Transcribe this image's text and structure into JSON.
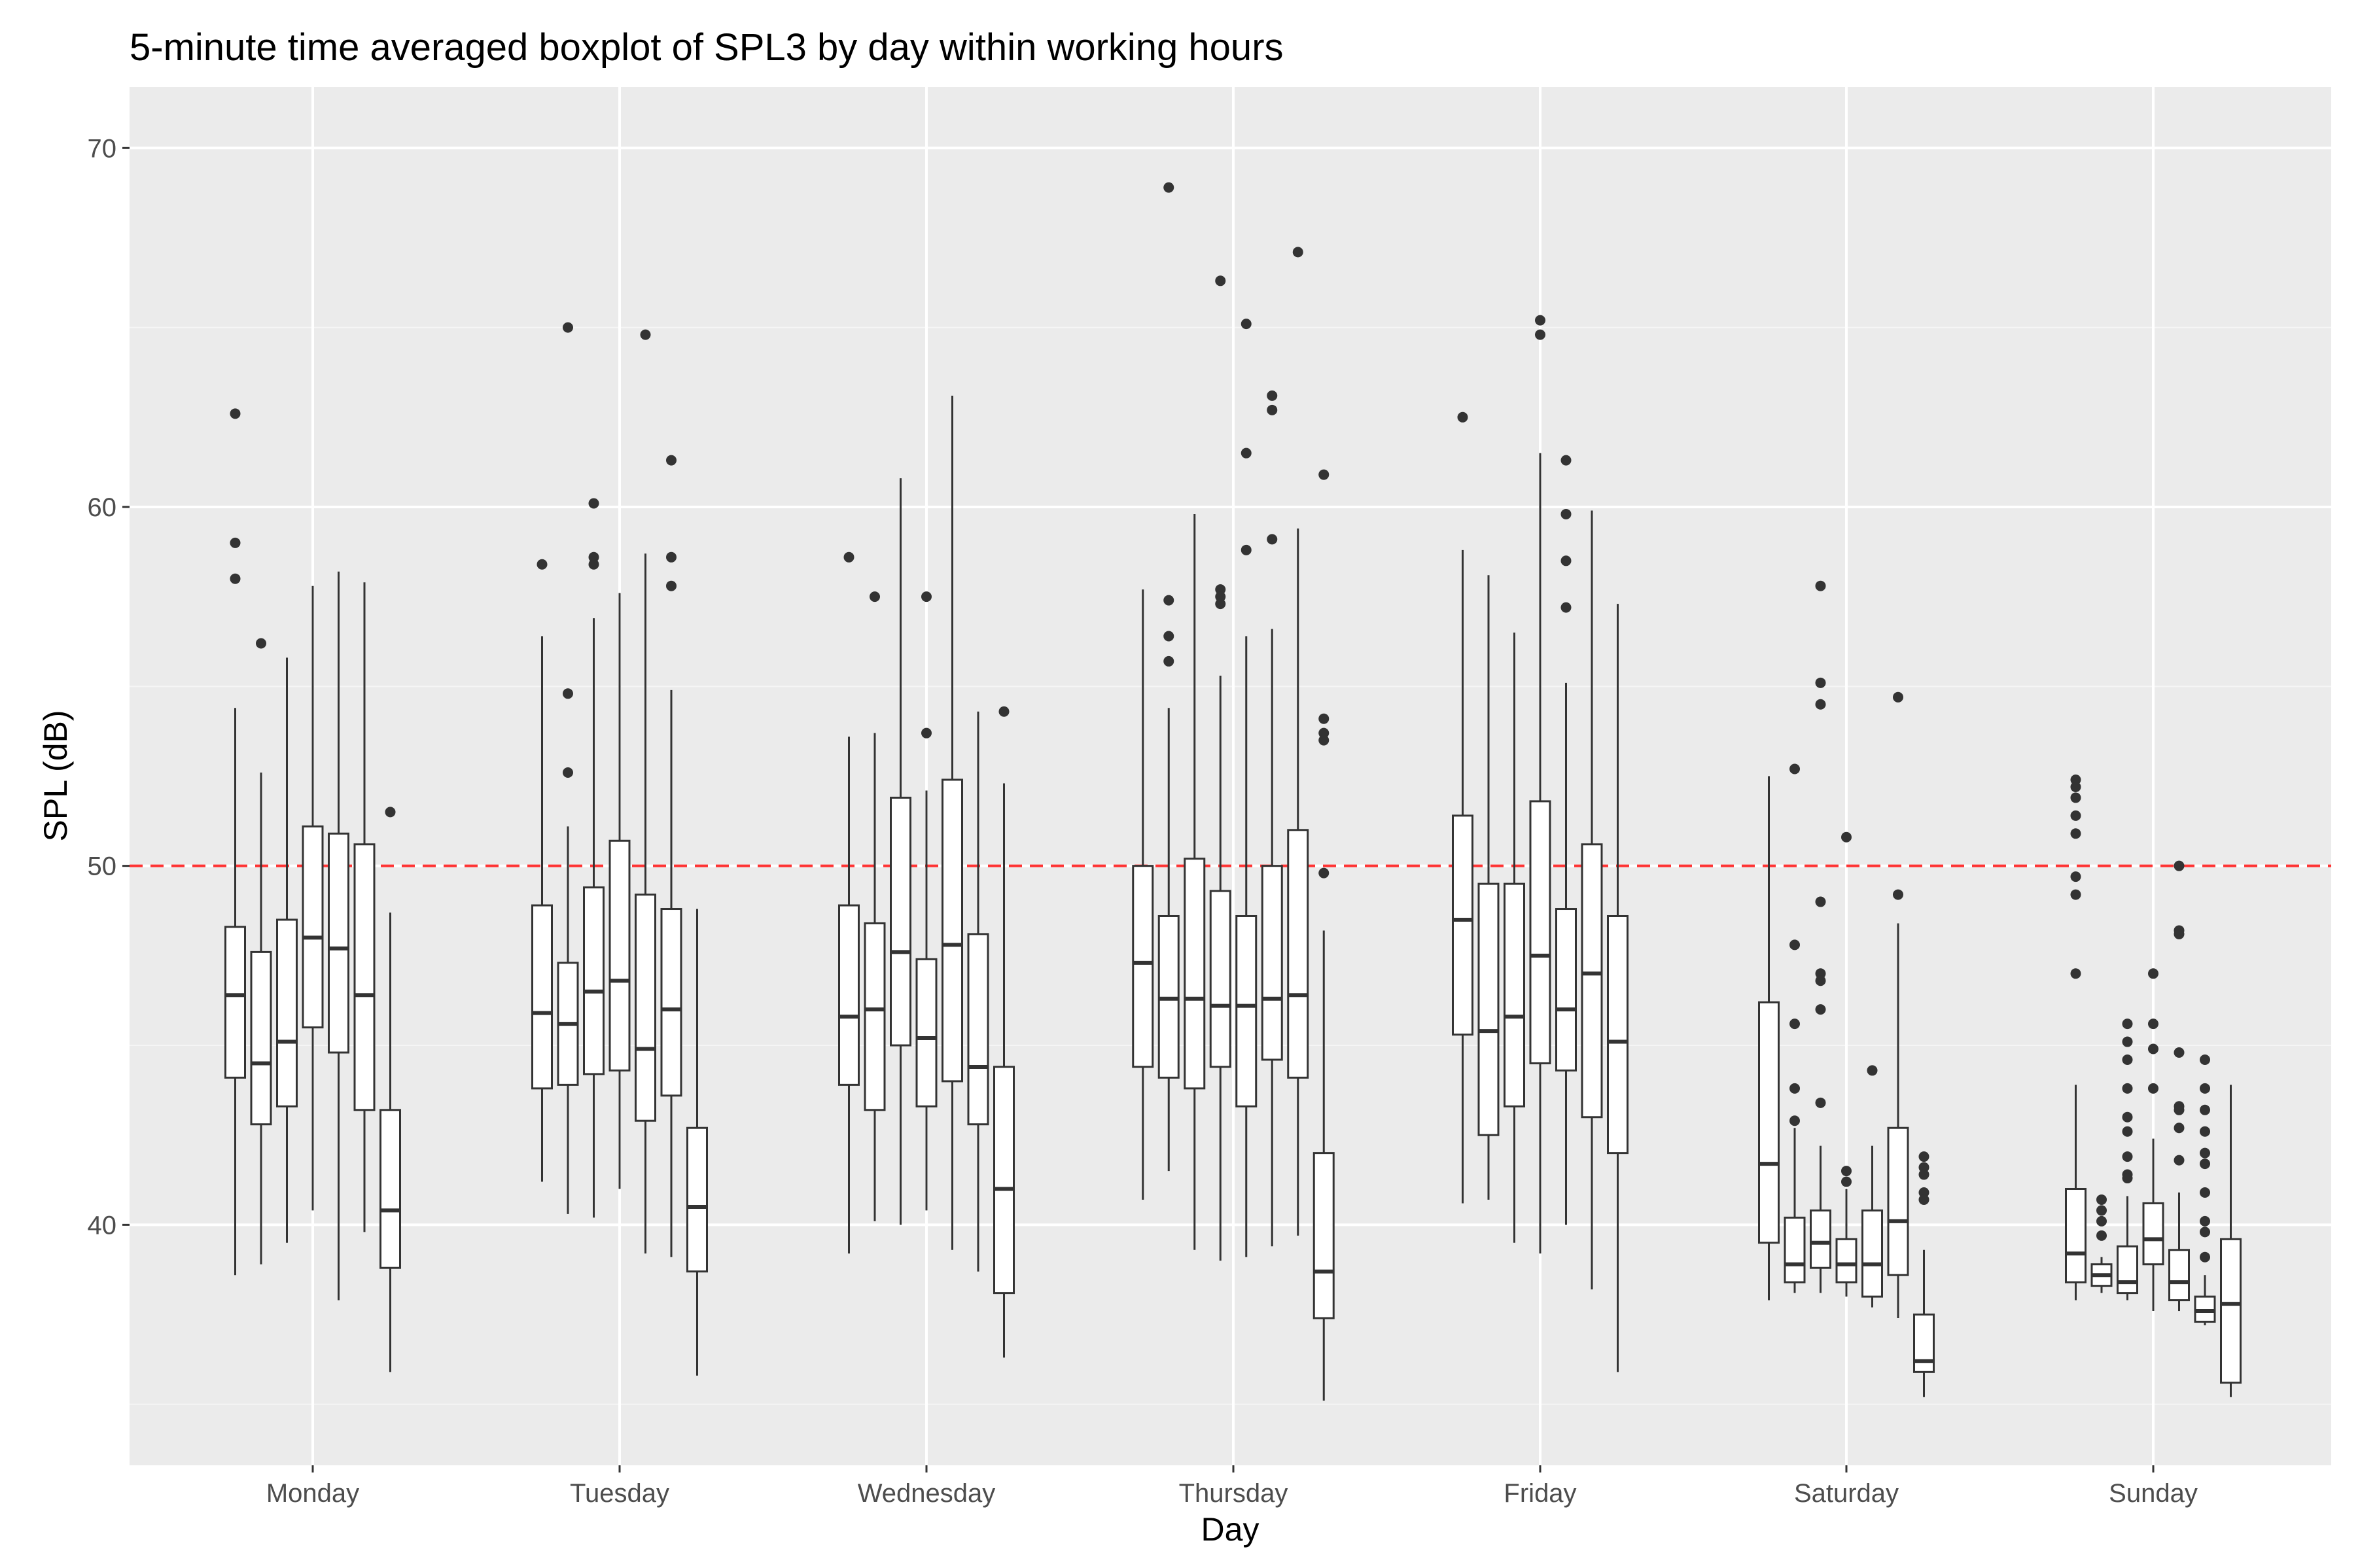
{
  "chart_data": {
    "type": "boxplot",
    "title": "5-minute time averaged boxplot of SPL3 by day within working hours",
    "xlabel": "Day",
    "ylabel": "SPL (dB)",
    "ylim": [
      33.3,
      71.7
    ],
    "yticks": [
      40,
      50,
      60,
      70
    ],
    "grid": true,
    "reference_line": {
      "y": 50,
      "color": "#ff3333",
      "style": "dashed"
    },
    "categories": [
      "Monday",
      "Tuesday",
      "Wednesday",
      "Thursday",
      "Friday",
      "Saturday",
      "Sunday"
    ],
    "colors": {
      "panel": "#ebebeb",
      "grid_major": "#ffffff",
      "grid_minor": "#f5f5f5",
      "box_fill": "#ffffff",
      "box_line": "#333333",
      "outlier": "#333333",
      "tick_text": "#4d4d4d"
    },
    "groups": [
      {
        "day": "Monday",
        "boxes": [
          {
            "whisker_low": 38.6,
            "q1": 44.1,
            "median": 46.4,
            "q3": 48.3,
            "whisker_high": 54.4,
            "outliers": [
              62.6,
              59.0,
              58.0
            ]
          },
          {
            "whisker_low": 38.9,
            "q1": 42.8,
            "median": 44.5,
            "q3": 47.6,
            "whisker_high": 52.6,
            "outliers": [
              56.2
            ]
          },
          {
            "whisker_low": 39.5,
            "q1": 43.3,
            "median": 45.1,
            "q3": 48.5,
            "whisker_high": 55.8,
            "outliers": []
          },
          {
            "whisker_low": 40.4,
            "q1": 45.5,
            "median": 48.0,
            "q3": 51.1,
            "whisker_high": 57.8,
            "outliers": []
          },
          {
            "whisker_low": 37.9,
            "q1": 44.8,
            "median": 47.7,
            "q3": 50.9,
            "whisker_high": 58.2,
            "outliers": []
          },
          {
            "whisker_low": 39.8,
            "q1": 43.2,
            "median": 46.4,
            "q3": 50.6,
            "whisker_high": 57.9,
            "outliers": []
          },
          {
            "whisker_low": 35.9,
            "q1": 38.8,
            "median": 40.4,
            "q3": 43.2,
            "whisker_high": 48.7,
            "outliers": [
              51.5
            ]
          }
        ]
      },
      {
        "day": "Tuesday",
        "boxes": [
          {
            "whisker_low": 41.2,
            "q1": 43.8,
            "median": 45.9,
            "q3": 48.9,
            "whisker_high": 56.4,
            "outliers": [
              58.4
            ]
          },
          {
            "whisker_low": 40.3,
            "q1": 43.9,
            "median": 45.6,
            "q3": 47.3,
            "whisker_high": 51.1,
            "outliers": [
              65.0,
              54.8,
              52.6
            ]
          },
          {
            "whisker_low": 40.2,
            "q1": 44.2,
            "median": 46.5,
            "q3": 49.4,
            "whisker_high": 56.9,
            "outliers": [
              60.1,
              58.6,
              58.4
            ]
          },
          {
            "whisker_low": 41.0,
            "q1": 44.3,
            "median": 46.8,
            "q3": 50.7,
            "whisker_high": 57.6,
            "outliers": []
          },
          {
            "whisker_low": 39.2,
            "q1": 42.9,
            "median": 44.9,
            "q3": 49.2,
            "whisker_high": 58.7,
            "outliers": [
              64.8
            ]
          },
          {
            "whisker_low": 39.1,
            "q1": 43.6,
            "median": 46.0,
            "q3": 48.8,
            "whisker_high": 54.9,
            "outliers": [
              61.3,
              58.6,
              57.8
            ]
          },
          {
            "whisker_low": 35.8,
            "q1": 38.7,
            "median": 40.5,
            "q3": 42.7,
            "whisker_high": 48.8,
            "outliers": []
          }
        ]
      },
      {
        "day": "Wednesday",
        "boxes": [
          {
            "whisker_low": 39.2,
            "q1": 43.9,
            "median": 45.8,
            "q3": 48.9,
            "whisker_high": 53.6,
            "outliers": [
              58.6
            ]
          },
          {
            "whisker_low": 40.1,
            "q1": 43.2,
            "median": 46.0,
            "q3": 48.4,
            "whisker_high": 53.7,
            "outliers": [
              57.5
            ]
          },
          {
            "whisker_low": 40.0,
            "q1": 45.0,
            "median": 47.6,
            "q3": 51.9,
            "whisker_high": 60.8,
            "outliers": []
          },
          {
            "whisker_low": 40.4,
            "q1": 43.3,
            "median": 45.2,
            "q3": 47.4,
            "whisker_high": 52.1,
            "outliers": [
              57.5,
              53.7
            ]
          },
          {
            "whisker_low": 39.3,
            "q1": 44.0,
            "median": 47.8,
            "q3": 52.4,
            "whisker_high": 63.1,
            "outliers": []
          },
          {
            "whisker_low": 38.7,
            "q1": 42.8,
            "median": 44.4,
            "q3": 48.1,
            "whisker_high": 54.3,
            "outliers": []
          },
          {
            "whisker_low": 36.3,
            "q1": 38.1,
            "median": 41.0,
            "q3": 44.4,
            "whisker_high": 52.3,
            "outliers": [
              54.3
            ]
          }
        ]
      },
      {
        "day": "Thursday",
        "boxes": [
          {
            "whisker_low": 40.7,
            "q1": 44.4,
            "median": 47.3,
            "q3": 50.0,
            "whisker_high": 57.7,
            "outliers": []
          },
          {
            "whisker_low": 41.5,
            "q1": 44.1,
            "median": 46.3,
            "q3": 48.6,
            "whisker_high": 54.4,
            "outliers": [
              68.9,
              57.4,
              56.4,
              55.7
            ]
          },
          {
            "whisker_low": 39.3,
            "q1": 43.8,
            "median": 46.3,
            "q3": 50.2,
            "whisker_high": 59.8,
            "outliers": []
          },
          {
            "whisker_low": 39.0,
            "q1": 44.4,
            "median": 46.1,
            "q3": 49.3,
            "whisker_high": 55.3,
            "outliers": [
              66.3,
              57.7,
              57.5,
              57.3
            ]
          },
          {
            "whisker_low": 39.1,
            "q1": 43.3,
            "median": 46.1,
            "q3": 48.6,
            "whisker_high": 56.4,
            "outliers": [
              65.1,
              61.5,
              58.8
            ]
          },
          {
            "whisker_low": 39.4,
            "q1": 44.6,
            "median": 46.3,
            "q3": 50.0,
            "whisker_high": 56.6,
            "outliers": [
              63.1,
              62.7,
              59.1
            ]
          },
          {
            "whisker_low": 39.7,
            "q1": 44.1,
            "median": 46.4,
            "q3": 51.0,
            "whisker_high": 59.4,
            "outliers": [
              67.1
            ]
          },
          {
            "whisker_low": 35.1,
            "q1": 37.4,
            "median": 38.7,
            "q3": 42.0,
            "whisker_high": 48.2,
            "outliers": [
              60.9,
              54.1,
              53.7,
              53.5,
              49.8
            ]
          }
        ]
      },
      {
        "day": "Friday",
        "boxes": [
          {
            "whisker_low": 40.6,
            "q1": 45.3,
            "median": 48.5,
            "q3": 51.4,
            "whisker_high": 58.8,
            "outliers": [
              62.5
            ]
          },
          {
            "whisker_low": 40.7,
            "q1": 42.5,
            "median": 45.4,
            "q3": 49.5,
            "whisker_high": 58.1,
            "outliers": []
          },
          {
            "whisker_low": 39.5,
            "q1": 43.3,
            "median": 45.8,
            "q3": 49.5,
            "whisker_high": 56.5,
            "outliers": []
          },
          {
            "whisker_low": 39.2,
            "q1": 44.5,
            "median": 47.5,
            "q3": 51.8,
            "whisker_high": 61.5,
            "outliers": [
              65.2,
              64.8
            ]
          },
          {
            "whisker_low": 40.0,
            "q1": 44.3,
            "median": 46.0,
            "q3": 48.8,
            "whisker_high": 55.1,
            "outliers": [
              61.3,
              59.8,
              58.5,
              57.2
            ]
          },
          {
            "whisker_low": 38.2,
            "q1": 43.0,
            "median": 47.0,
            "q3": 50.6,
            "whisker_high": 59.9,
            "outliers": []
          },
          {
            "whisker_low": 35.9,
            "q1": 42.0,
            "median": 45.1,
            "q3": 48.6,
            "whisker_high": 57.3,
            "outliers": []
          }
        ]
      },
      {
        "day": "Saturday",
        "boxes": [
          {
            "whisker_low": 37.9,
            "q1": 39.5,
            "median": 41.7,
            "q3": 46.2,
            "whisker_high": 52.5,
            "outliers": []
          },
          {
            "whisker_low": 38.1,
            "q1": 38.4,
            "median": 38.9,
            "q3": 40.2,
            "whisker_high": 42.7,
            "outliers": [
              52.7,
              47.8,
              45.6,
              43.8,
              42.9
            ]
          },
          {
            "whisker_low": 38.1,
            "q1": 38.8,
            "median": 39.5,
            "q3": 40.4,
            "whisker_high": 42.2,
            "outliers": [
              57.8,
              55.1,
              54.5,
              49.0,
              47.0,
              46.8,
              46.0,
              43.4
            ]
          },
          {
            "whisker_low": 38.0,
            "q1": 38.4,
            "median": 38.9,
            "q3": 39.6,
            "whisker_high": 41.0,
            "outliers": [
              50.8,
              41.5,
              41.2
            ]
          },
          {
            "whisker_low": 37.7,
            "q1": 38.0,
            "median": 38.9,
            "q3": 40.4,
            "whisker_high": 42.2,
            "outliers": [
              44.3
            ]
          },
          {
            "whisker_low": 37.4,
            "q1": 38.6,
            "median": 40.1,
            "q3": 42.7,
            "whisker_high": 48.4,
            "outliers": [
              54.7,
              49.2
            ]
          },
          {
            "whisker_low": 35.2,
            "q1": 35.9,
            "median": 36.2,
            "q3": 37.5,
            "whisker_high": 39.3,
            "outliers": [
              41.9,
              41.6,
              41.4,
              40.9,
              40.7
            ]
          }
        ]
      },
      {
        "day": "Sunday",
        "boxes": [
          {
            "whisker_low": 37.9,
            "q1": 38.4,
            "median": 39.2,
            "q3": 41.0,
            "whisker_high": 43.9,
            "outliers": [
              52.4,
              52.2,
              51.9,
              51.4,
              50.9,
              49.7,
              49.2,
              47.0
            ]
          },
          {
            "whisker_low": 38.1,
            "q1": 38.3,
            "median": 38.6,
            "q3": 38.9,
            "whisker_high": 39.1,
            "outliers": [
              40.7,
              40.4,
              40.1,
              39.7
            ]
          },
          {
            "whisker_low": 37.9,
            "q1": 38.1,
            "median": 38.4,
            "q3": 39.4,
            "whisker_high": 40.8,
            "outliers": [
              45.6,
              45.1,
              44.6,
              43.8,
              43.0,
              42.6,
              41.9,
              41.4,
              41.3
            ]
          },
          {
            "whisker_low": 37.6,
            "q1": 38.9,
            "median": 39.6,
            "q3": 40.6,
            "whisker_high": 42.4,
            "outliers": [
              47.0,
              45.6,
              44.9,
              43.8
            ]
          },
          {
            "whisker_low": 37.6,
            "q1": 37.9,
            "median": 38.4,
            "q3": 39.3,
            "whisker_high": 40.9,
            "outliers": [
              50.0,
              48.2,
              48.1,
              44.8,
              43.3,
              43.2,
              42.7,
              41.8
            ]
          },
          {
            "whisker_low": 37.2,
            "q1": 37.3,
            "median": 37.6,
            "q3": 38.0,
            "whisker_high": 38.6,
            "outliers": [
              44.6,
              43.8,
              43.2,
              42.6,
              42.0,
              41.7,
              40.9,
              40.1,
              39.8,
              39.1
            ]
          },
          {
            "whisker_low": 35.2,
            "q1": 35.6,
            "median": 37.8,
            "q3": 39.6,
            "whisker_high": 43.9,
            "outliers": []
          }
        ]
      }
    ]
  }
}
